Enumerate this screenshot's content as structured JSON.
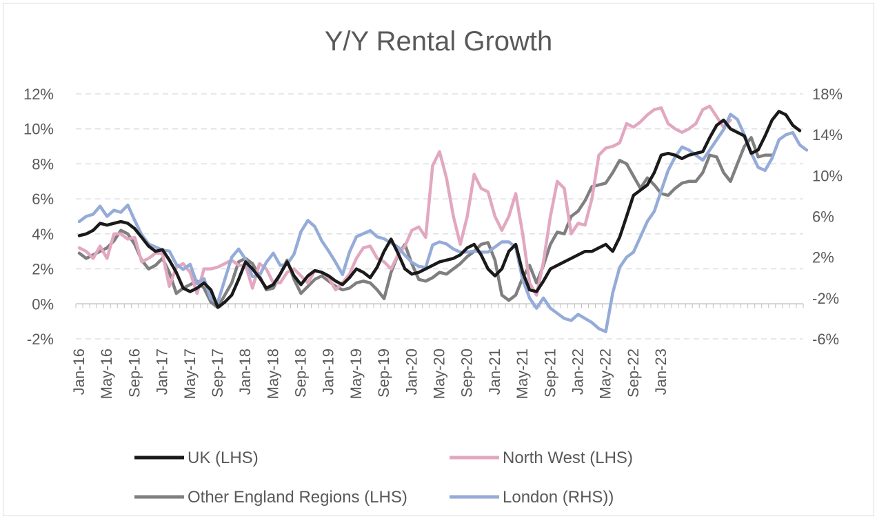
{
  "chart_data": {
    "type": "line",
    "title": "Y/Y Rental Growth",
    "x_tick_labels": [
      "Jan-16",
      "May-16",
      "Sep-16",
      "Jan-17",
      "May-17",
      "Sep-17",
      "Jan-18",
      "May-18",
      "Sep-18",
      "Jan-19",
      "May-19",
      "Sep-19",
      "Jan-20",
      "May-20",
      "Sep-20",
      "Jan-21",
      "May-21",
      "Sep-21",
      "Jan-22",
      "May-22",
      "Sep-22",
      "Jan-23"
    ],
    "x_range": [
      "Jan-16",
      "Feb-23"
    ],
    "y_left": {
      "ylim": [
        -2,
        12
      ],
      "ticks": [
        -2,
        0,
        2,
        4,
        6,
        8,
        10,
        12
      ],
      "unit": "%"
    },
    "y_right": {
      "ylim": [
        -6,
        18
      ],
      "ticks": [
        -6,
        -2,
        2,
        6,
        10,
        14,
        18
      ],
      "unit": "%"
    },
    "grid": "horizontal dashed",
    "legend_position": "bottom",
    "series": [
      {
        "name": "UK (LHS)",
        "axis": "left",
        "color": "#1a1a1a",
        "values": [
          3.9,
          4.0,
          4.2,
          4.6,
          4.5,
          4.6,
          4.7,
          4.6,
          4.3,
          3.8,
          3.3,
          3.0,
          3.1,
          2.5,
          1.8,
          0.9,
          0.7,
          0.9,
          1.2,
          0.8,
          -0.2,
          0.1,
          0.5,
          1.4,
          2.4,
          2.0,
          1.5,
          0.9,
          1.1,
          1.7,
          2.4,
          1.6,
          1.1,
          1.6,
          1.9,
          1.8,
          1.6,
          1.3,
          1.1,
          1.5,
          2.0,
          1.8,
          1.5,
          2.1,
          3.0,
          3.7,
          2.9,
          2.0,
          1.7,
          1.8,
          2.0,
          2.2,
          2.4,
          2.5,
          2.6,
          2.8,
          3.2,
          3.4,
          2.8,
          2.0,
          1.6,
          2.0,
          3.0,
          3.4,
          1.8,
          0.8,
          0.7,
          1.3,
          2.0,
          2.2,
          2.4,
          2.6,
          2.8,
          3.0,
          3.0,
          3.2,
          3.4,
          3.0,
          3.8,
          5.0,
          6.2,
          6.5,
          6.8,
          7.5,
          8.5,
          8.6,
          8.5,
          8.3,
          8.5,
          8.6,
          8.7,
          9.5,
          10.2,
          10.5,
          10.0,
          9.8,
          9.6,
          8.6,
          8.8,
          9.6,
          10.5,
          11.0,
          10.8,
          10.2,
          9.9
        ]
      },
      {
        "name": "North West (LHS)",
        "axis": "left",
        "color": "#e2a8c0",
        "values": [
          3.2,
          3.0,
          2.6,
          3.3,
          2.6,
          4.0,
          4.0,
          3.7,
          3.8,
          2.4,
          2.6,
          2.9,
          2.9,
          1.0,
          2.1,
          2.3,
          1.8,
          0.6,
          2.0,
          2.0,
          2.1,
          2.3,
          2.5,
          2.2,
          2.2,
          0.9,
          2.3,
          2.0,
          1.2,
          1.2,
          1.8,
          2.0,
          1.6,
          1.2,
          1.9,
          1.8,
          1.5,
          0.8,
          1.2,
          1.7,
          2.6,
          3.2,
          3.3,
          2.6,
          2.4,
          2.0,
          2.8,
          3.3,
          4.2,
          4.4,
          3.8,
          7.9,
          8.7,
          7.2,
          5.0,
          3.4,
          5.0,
          7.4,
          6.6,
          6.4,
          5.0,
          4.2,
          5.0,
          6.3,
          4.0,
          1.2,
          0.5,
          2.4,
          5.0,
          7.0,
          6.6,
          4.0,
          4.6,
          4.5,
          6.0,
          8.5,
          8.9,
          9.0,
          9.2,
          10.3,
          10.1,
          10.4,
          10.8,
          11.1,
          11.2,
          10.3,
          10.0,
          9.8,
          10.0,
          10.3,
          11.1,
          11.3,
          10.7,
          10.1,
          10.5
        ]
      },
      {
        "name": "Other England Regions (LHS)",
        "axis": "left",
        "color": "#7f7f7f",
        "values": [
          2.9,
          2.6,
          2.8,
          3.0,
          3.2,
          3.6,
          4.2,
          4.0,
          3.4,
          2.5,
          2.0,
          2.2,
          2.6,
          1.8,
          0.6,
          0.9,
          1.1,
          1.3,
          0.9,
          0.1,
          -0.2,
          0.5,
          1.2,
          2.4,
          2.6,
          2.3,
          1.6,
          0.8,
          0.9,
          1.7,
          2.5,
          1.4,
          0.6,
          1.0,
          1.4,
          1.6,
          1.3,
          1.0,
          0.8,
          0.9,
          1.2,
          1.3,
          1.2,
          0.8,
          0.3,
          1.8,
          2.8,
          3.4,
          2.3,
          1.4,
          1.3,
          1.5,
          1.8,
          1.7,
          2.0,
          2.3,
          2.7,
          3.0,
          3.4,
          3.5,
          2.5,
          0.5,
          0.2,
          0.5,
          1.5,
          2.2,
          1.2,
          2.2,
          3.4,
          4.1,
          4.0,
          5.0,
          5.3,
          5.9,
          6.7,
          6.8,
          6.9,
          7.5,
          8.2,
          8.0,
          7.3,
          6.6,
          7.2,
          6.8,
          6.3,
          6.2,
          6.6,
          6.9,
          7.0,
          7.0,
          7.5,
          8.5,
          8.4,
          7.5,
          7.0,
          8.0,
          9.0,
          9.5,
          8.4,
          8.5,
          8.5
        ]
      },
      {
        "name": "London (RHS))",
        "axis": "right",
        "color": "#95abd8",
        "values": [
          5.5,
          6.0,
          6.2,
          7.0,
          6.0,
          6.6,
          6.4,
          7.1,
          5.6,
          4.2,
          3.3,
          3.0,
          2.7,
          2.6,
          1.3,
          0.8,
          1.3,
          -0.6,
          -0.1,
          -2.1,
          -2.4,
          -0.2,
          2.0,
          2.8,
          1.8,
          0.1,
          0.2,
          1.5,
          2.4,
          1.2,
          1.3,
          2.3,
          4.5,
          5.6,
          5.0,
          3.6,
          2.6,
          1.5,
          0.3,
          2.5,
          4.0,
          4.3,
          4.6,
          4.0,
          3.8,
          3.4,
          3.0,
          2.2,
          1.5,
          1.1,
          1.0,
          3.2,
          3.5,
          3.3,
          2.8,
          2.5,
          2.5,
          2.6,
          2.5,
          2.5,
          3.0,
          3.5,
          3.5,
          3.0,
          -0.2,
          -2.0,
          -3.0,
          -2.0,
          -3.0,
          -3.5,
          -4.0,
          -4.2,
          -3.6,
          -4.0,
          -4.4,
          -5.0,
          -5.3,
          -1.5,
          1.0,
          2.0,
          2.5,
          4.0,
          5.5,
          6.5,
          8.5,
          10.5,
          11.8,
          12.8,
          12.5,
          12.0,
          11.5,
          12.5,
          13.5,
          14.5,
          16.0,
          15.5,
          14.0,
          12.2,
          10.8,
          10.5,
          11.7,
          13.5,
          14.0,
          14.2,
          13.0,
          12.5
        ]
      }
    ]
  }
}
